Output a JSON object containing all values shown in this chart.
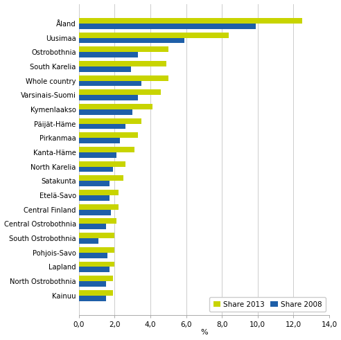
{
  "regions": [
    "Åland",
    "Uusimaa",
    "Ostrobothnia",
    "South Karelia",
    "Whole country",
    "Varsinais-Suomi",
    "Kymenlaakso",
    "Päijät-Häme",
    "Pirkanmaa",
    "Kanta-Häme",
    "North Karelia",
    "Satakunta",
    "Etelä-Savo",
    "Central Finland",
    "Central Ostrobothnia",
    "South Ostrobothnia",
    "Pohjois-Savo",
    "Lapland",
    "North Ostrobothnia",
    "Kainuu"
  ],
  "share_2013": [
    12.5,
    8.4,
    5.0,
    4.9,
    5.0,
    4.6,
    4.1,
    3.5,
    3.3,
    3.1,
    2.6,
    2.5,
    2.2,
    2.2,
    2.1,
    2.0,
    2.0,
    2.0,
    1.9,
    1.9
  ],
  "share_2008": [
    9.9,
    5.9,
    3.3,
    2.9,
    3.5,
    3.3,
    3.0,
    2.6,
    2.3,
    2.1,
    1.9,
    1.7,
    1.7,
    1.8,
    1.5,
    1.1,
    1.6,
    1.7,
    1.5,
    1.5
  ],
  "color_2013": "#c8d400",
  "color_2008": "#1e5fa8",
  "xlabel": "%",
  "xlim": [
    0,
    14.0
  ],
  "xtick_labels": [
    "0,0",
    "2,0",
    "4,0",
    "6,0",
    "8,0",
    "10,0",
    "12,0",
    "14,0"
  ],
  "xtick_vals": [
    0.0,
    2.0,
    4.0,
    6.0,
    8.0,
    10.0,
    12.0,
    14.0
  ],
  "legend_2013": "Share 2013",
  "legend_2008": "Share 2008",
  "bar_height": 0.38,
  "grid_color": "#cccccc",
  "background_color": "#ffffff"
}
